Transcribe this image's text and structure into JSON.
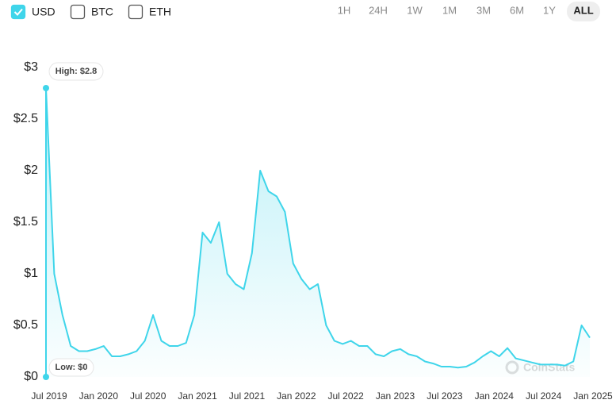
{
  "controls": {
    "currencies": [
      {
        "label": "USD",
        "checked": true
      },
      {
        "label": "BTC",
        "checked": false
      },
      {
        "label": "ETH",
        "checked": false
      }
    ],
    "ranges": [
      {
        "label": "1H",
        "active": false
      },
      {
        "label": "24H",
        "active": false
      },
      {
        "label": "1W",
        "active": false
      },
      {
        "label": "1M",
        "active": false
      },
      {
        "label": "3M",
        "active": false
      },
      {
        "label": "6M",
        "active": false
      },
      {
        "label": "1Y",
        "active": false
      },
      {
        "label": "ALL",
        "active": true
      }
    ]
  },
  "chart_data": {
    "type": "area-line",
    "watermark": "CoinStats",
    "x": [
      "2019-07",
      "2019-08",
      "2019-09",
      "2019-10",
      "2019-11",
      "2019-12",
      "2020-01",
      "2020-02",
      "2020-03",
      "2020-04",
      "2020-05",
      "2020-06",
      "2020-07",
      "2020-08",
      "2020-09",
      "2020-10",
      "2020-11",
      "2020-12",
      "2021-01",
      "2021-02",
      "2021-03",
      "2021-04",
      "2021-05",
      "2021-06",
      "2021-07",
      "2021-08",
      "2021-09",
      "2021-10",
      "2021-11",
      "2021-12",
      "2022-01",
      "2022-02",
      "2022-03",
      "2022-04",
      "2022-05",
      "2022-06",
      "2022-07",
      "2022-08",
      "2022-09",
      "2022-10",
      "2022-11",
      "2022-12",
      "2023-01",
      "2023-02",
      "2023-03",
      "2023-04",
      "2023-05",
      "2023-06",
      "2023-07",
      "2023-08",
      "2023-09",
      "2023-10",
      "2023-11",
      "2023-12",
      "2024-01",
      "2024-02",
      "2024-03",
      "2024-04",
      "2024-05",
      "2024-06",
      "2024-07",
      "2024-08",
      "2024-09",
      "2024-10",
      "2024-11",
      "2024-12",
      "2025-01"
    ],
    "series": [
      {
        "color": "#3fd5ea",
        "values": [
          2.8,
          1.0,
          0.6,
          0.3,
          0.25,
          0.25,
          0.27,
          0.3,
          0.2,
          0.2,
          0.22,
          0.25,
          0.35,
          0.6,
          0.35,
          0.3,
          0.3,
          0.33,
          0.6,
          1.4,
          1.3,
          1.5,
          1.0,
          0.9,
          0.85,
          1.2,
          2.0,
          1.8,
          1.75,
          1.6,
          1.1,
          0.95,
          0.85,
          0.9,
          0.5,
          0.35,
          0.32,
          0.35,
          0.3,
          0.3,
          0.22,
          0.2,
          0.25,
          0.27,
          0.22,
          0.2,
          0.15,
          0.13,
          0.1,
          0.1,
          0.09,
          0.1,
          0.14,
          0.2,
          0.25,
          0.2,
          0.28,
          0.18,
          0.16,
          0.14,
          0.12,
          0.12,
          0.12,
          0.11,
          0.15,
          0.5,
          0.38
        ]
      }
    ],
    "xlim": [
      "2019-07",
      "2025-01"
    ],
    "xticks": [
      {
        "value": "2019-07",
        "label": "Jul 2019"
      },
      {
        "value": "2020-01",
        "label": "Jan 2020"
      },
      {
        "value": "2020-07",
        "label": "Jul 2020"
      },
      {
        "value": "2021-01",
        "label": "Jan 2021"
      },
      {
        "value": "2021-07",
        "label": "Jul 2021"
      },
      {
        "value": "2022-01",
        "label": "Jan 2022"
      },
      {
        "value": "2022-07",
        "label": "Jul 2022"
      },
      {
        "value": "2023-01",
        "label": "Jan 2023"
      },
      {
        "value": "2023-07",
        "label": "Jul 2023"
      },
      {
        "value": "2024-01",
        "label": "Jan 2024"
      },
      {
        "value": "2024-07",
        "label": "Jul 2024"
      },
      {
        "value": "2025-01",
        "label": "Jan 2025"
      }
    ],
    "ylim": [
      0,
      3
    ],
    "yticks": [
      {
        "value": 0,
        "label": "$0"
      },
      {
        "value": 0.5,
        "label": "$0.5"
      },
      {
        "value": 1,
        "label": "$1"
      },
      {
        "value": 1.5,
        "label": "$1.5"
      },
      {
        "value": 2,
        "label": "$2"
      },
      {
        "value": 2.5,
        "label": "$2.5"
      },
      {
        "value": 3,
        "label": "$3"
      }
    ],
    "annotations": [
      {
        "label": "High: $2.8",
        "value": 2.8
      },
      {
        "label": "Low: $0",
        "value": 0
      }
    ]
  }
}
